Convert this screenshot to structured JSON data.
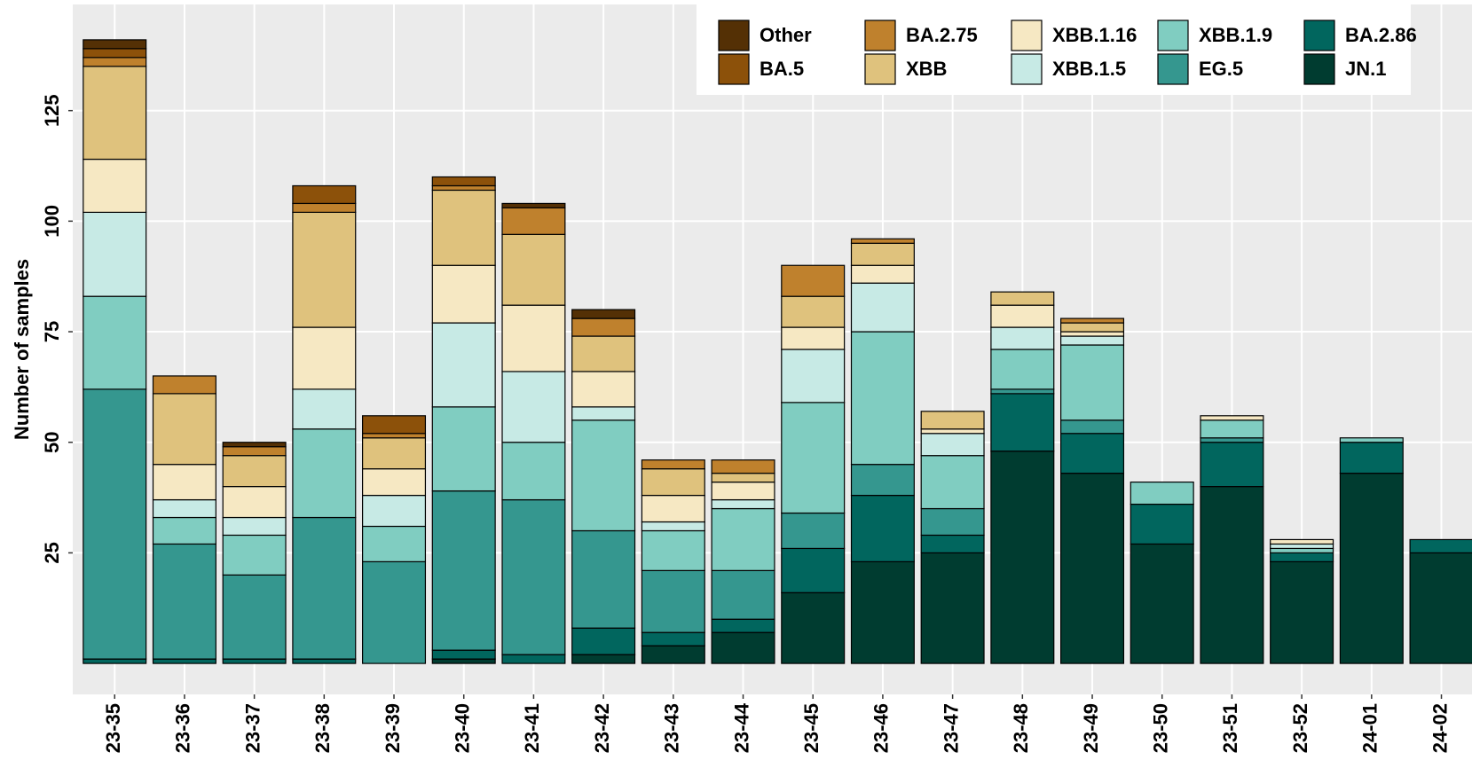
{
  "chart_data": {
    "type": "stacked-bar",
    "y_label": "Number of samples",
    "categories": [
      "23-35",
      "23-36",
      "23-37",
      "23-38",
      "23-39",
      "23-40",
      "23-41",
      "23-42",
      "23-43",
      "23-44",
      "23-45",
      "23-46",
      "23-47",
      "23-48",
      "23-49",
      "23-50",
      "23-51",
      "23-52",
      "24-01",
      "24-02"
    ],
    "series": [
      {
        "name": "Other",
        "color": "#543005",
        "values": [
          2,
          0,
          1,
          0,
          0,
          0,
          1,
          2,
          0,
          0,
          0,
          0,
          0,
          0,
          0,
          0,
          0,
          0,
          0,
          0
        ]
      },
      {
        "name": "BA.5",
        "color": "#8c510a",
        "values": [
          2,
          0,
          0,
          4,
          4,
          2,
          0,
          0,
          0,
          0,
          0,
          0,
          0,
          0,
          0,
          0,
          0,
          0,
          0,
          0
        ]
      },
      {
        "name": "BA.2.75",
        "color": "#bf812d",
        "values": [
          2,
          4,
          2,
          2,
          1,
          1,
          6,
          4,
          2,
          3,
          7,
          1,
          0,
          0,
          1,
          0,
          0,
          0,
          0,
          0
        ]
      },
      {
        "name": "XBB",
        "color": "#dfc27d",
        "values": [
          21,
          16,
          7,
          26,
          7,
          17,
          16,
          8,
          6,
          2,
          7,
          5,
          4,
          3,
          2,
          0,
          0,
          0,
          0,
          0
        ]
      },
      {
        "name": "XBB.1.16",
        "color": "#f6e8c3",
        "values": [
          12,
          8,
          7,
          14,
          6,
          13,
          15,
          8,
          6,
          4,
          5,
          4,
          1,
          5,
          1,
          0,
          1,
          1,
          0,
          0
        ]
      },
      {
        "name": "XBB.1.5",
        "color": "#c7eae5",
        "values": [
          19,
          4,
          4,
          9,
          7,
          19,
          16,
          3,
          2,
          2,
          12,
          11,
          5,
          5,
          2,
          0,
          0,
          1,
          0,
          0
        ]
      },
      {
        "name": "XBB.1.9",
        "color": "#80cdc1",
        "values": [
          21,
          6,
          9,
          20,
          8,
          19,
          13,
          25,
          9,
          14,
          25,
          30,
          12,
          9,
          17,
          5,
          4,
          1,
          1,
          0
        ]
      },
      {
        "name": "EG.5",
        "color": "#35978f",
        "values": [
          61,
          26,
          19,
          32,
          23,
          36,
          35,
          22,
          14,
          11,
          8,
          7,
          6,
          1,
          3,
          0,
          1,
          0,
          0,
          0
        ]
      },
      {
        "name": "BA.2.86",
        "color": "#01665e",
        "values": [
          1,
          1,
          1,
          1,
          0,
          2,
          2,
          6,
          3,
          3,
          10,
          15,
          4,
          13,
          9,
          9,
          10,
          2,
          7,
          3
        ]
      },
      {
        "name": "JN.1",
        "color": "#003c30",
        "values": [
          0,
          0,
          0,
          0,
          0,
          1,
          0,
          2,
          4,
          7,
          16,
          23,
          25,
          48,
          43,
          27,
          40,
          23,
          43,
          25
        ]
      }
    ],
    "ylim": [
      -7,
      149
    ],
    "yticks": [
      25,
      50,
      75,
      100,
      125
    ],
    "grid": true,
    "legend": "top-right"
  }
}
